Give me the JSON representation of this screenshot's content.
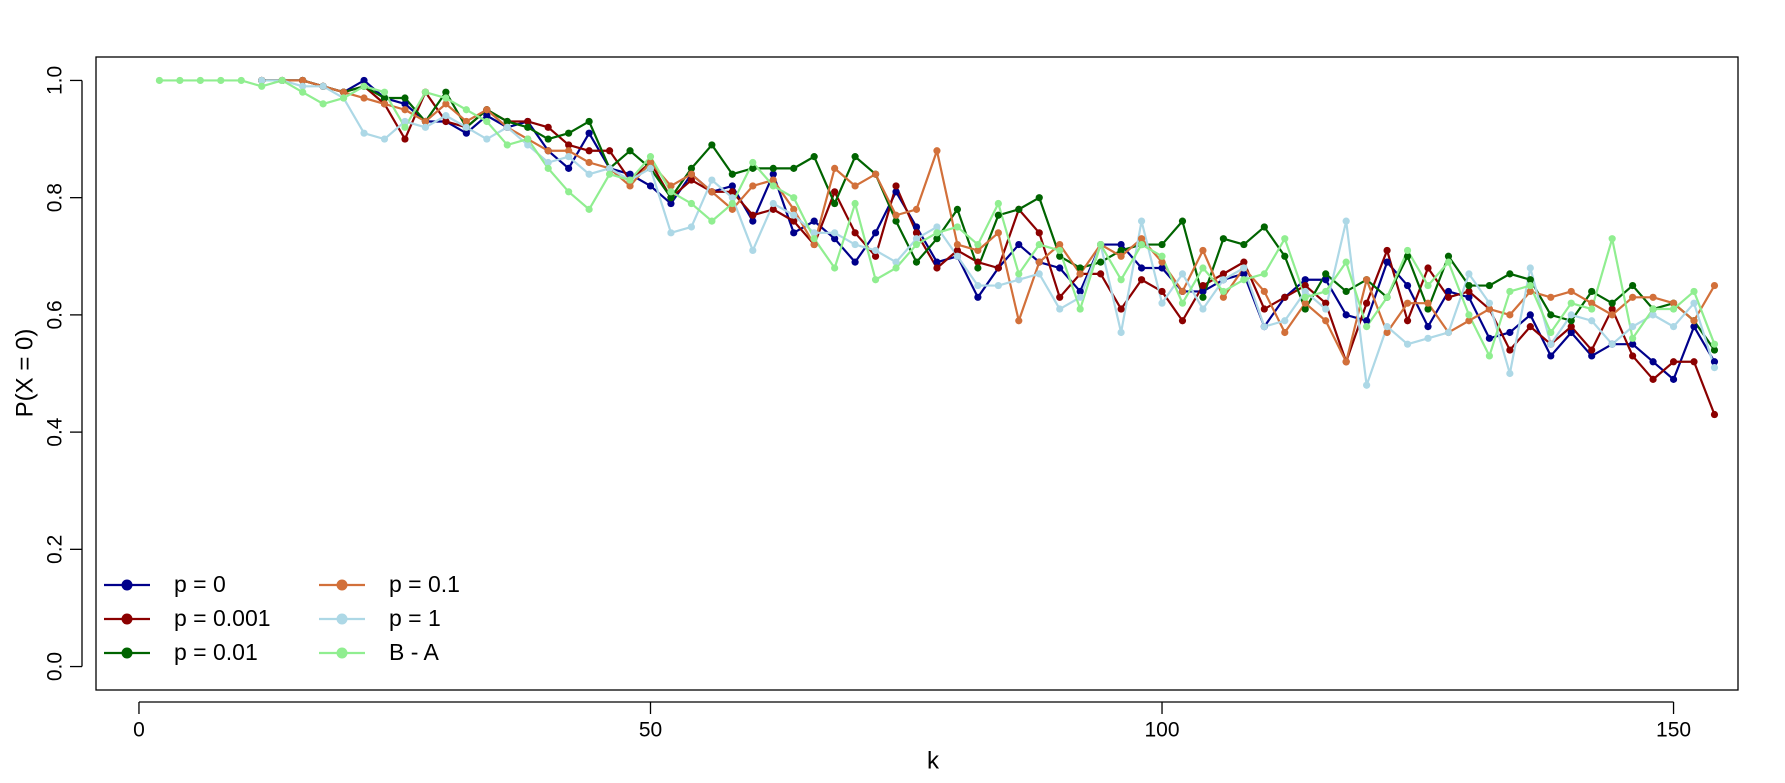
{
  "chart_data": {
    "type": "line",
    "xlabel": "k",
    "ylabel": "P(X = 0)",
    "xlim": [
      -4.2,
      156.3
    ],
    "ylim": [
      -0.04,
      1.04
    ],
    "xticks": [
      0,
      50,
      100,
      150
    ],
    "yticks": [
      {
        "value": 0,
        "label": "0.0"
      },
      {
        "value": 0.2,
        "label": "0.2"
      },
      {
        "value": 0.4,
        "label": "0.4"
      },
      {
        "value": 0.6,
        "label": "0.6"
      },
      {
        "value": 0.8,
        "label": "0.8"
      },
      {
        "value": 1,
        "label": "1.0"
      }
    ],
    "grid": false,
    "legend": "bottom-left",
    "x": [
      2,
      4,
      6,
      8,
      10,
      12,
      14,
      16,
      18,
      20,
      22,
      24,
      26,
      28,
      30,
      32,
      34,
      36,
      38,
      40,
      42,
      44,
      46,
      48,
      50,
      52,
      54,
      56,
      58,
      60,
      62,
      64,
      66,
      68,
      70,
      72,
      74,
      76,
      78,
      80,
      82,
      84,
      86,
      88,
      90,
      92,
      94,
      96,
      98,
      100,
      102,
      104,
      106,
      108,
      110,
      112,
      114,
      116,
      118,
      120,
      122,
      124,
      126,
      128,
      130,
      132,
      134,
      136,
      138,
      140,
      142,
      144,
      146,
      148,
      150,
      152,
      154
    ],
    "series": [
      {
        "name": "p = 0",
        "color": "#00008b",
        "values": [
          null,
          null,
          null,
          null,
          null,
          1.0,
          1.0,
          1.0,
          0.99,
          0.98,
          1.0,
          0.97,
          0.96,
          0.93,
          0.93,
          0.91,
          0.94,
          0.92,
          0.93,
          0.88,
          0.85,
          0.91,
          0.85,
          0.84,
          0.82,
          0.79,
          0.84,
          0.81,
          0.82,
          0.76,
          0.84,
          0.74,
          0.76,
          0.73,
          0.69,
          0.74,
          0.81,
          0.75,
          0.69,
          0.7,
          0.63,
          0.68,
          0.72,
          0.69,
          0.68,
          0.64,
          0.72,
          0.72,
          0.68,
          0.68,
          0.64,
          0.64,
          0.66,
          0.67,
          0.58,
          0.63,
          0.66,
          0.66,
          0.6,
          0.59,
          0.69,
          0.65,
          0.58,
          0.64,
          0.63,
          0.56,
          0.57,
          0.6,
          0.53,
          0.57,
          0.53,
          0.55,
          0.55,
          0.52,
          0.49,
          0.58,
          0.52
        ]
      },
      {
        "name": "p = 0.001",
        "color": "#8b0000",
        "values": [
          null,
          null,
          null,
          null,
          null,
          1.0,
          1.0,
          1.0,
          0.99,
          0.98,
          0.99,
          0.96,
          0.9,
          0.98,
          0.93,
          0.92,
          0.95,
          0.93,
          0.93,
          0.92,
          0.89,
          0.88,
          0.88,
          0.83,
          0.86,
          0.8,
          0.83,
          0.81,
          0.81,
          0.77,
          0.78,
          0.76,
          0.72,
          0.81,
          0.74,
          0.7,
          0.82,
          0.74,
          0.68,
          0.71,
          0.69,
          0.68,
          0.78,
          0.74,
          0.63,
          0.67,
          0.67,
          0.61,
          0.66,
          0.64,
          0.59,
          0.65,
          0.67,
          0.69,
          0.61,
          0.63,
          0.65,
          0.62,
          0.52,
          0.62,
          0.71,
          0.59,
          0.68,
          0.63,
          0.64,
          0.61,
          0.54,
          0.58,
          0.55,
          0.58,
          0.54,
          0.61,
          0.53,
          0.49,
          0.52,
          0.52,
          0.43
        ]
      },
      {
        "name": "p = 0.01",
        "color": "#006400",
        "values": [
          null,
          null,
          null,
          null,
          null,
          1.0,
          1.0,
          1.0,
          0.99,
          0.98,
          0.99,
          0.97,
          0.97,
          0.93,
          0.98,
          0.92,
          0.95,
          0.93,
          0.92,
          0.9,
          0.91,
          0.93,
          0.85,
          0.88,
          0.85,
          0.8,
          0.85,
          0.89,
          0.84,
          0.85,
          0.85,
          0.85,
          0.87,
          0.79,
          0.87,
          0.84,
          0.76,
          0.69,
          0.73,
          0.78,
          0.68,
          0.77,
          0.78,
          0.8,
          0.7,
          0.68,
          0.69,
          0.71,
          0.72,
          0.72,
          0.76,
          0.63,
          0.73,
          0.72,
          0.75,
          0.7,
          0.61,
          0.67,
          0.64,
          0.66,
          0.63,
          0.7,
          0.61,
          0.7,
          0.65,
          0.65,
          0.67,
          0.66,
          0.6,
          0.59,
          0.64,
          0.62,
          0.65,
          0.61,
          0.62,
          0.59,
          0.54
        ]
      },
      {
        "name": "p = 0.1",
        "color": "#d2703a",
        "values": [
          null,
          null,
          null,
          null,
          null,
          1.0,
          1.0,
          1.0,
          0.99,
          0.98,
          0.97,
          0.96,
          0.95,
          0.93,
          0.96,
          0.93,
          0.95,
          0.92,
          0.9,
          0.88,
          0.88,
          0.86,
          0.85,
          0.82,
          0.86,
          0.82,
          0.84,
          0.81,
          0.78,
          0.82,
          0.83,
          0.78,
          0.72,
          0.85,
          0.82,
          0.84,
          0.77,
          0.78,
          0.88,
          0.72,
          0.71,
          0.74,
          0.59,
          0.69,
          0.72,
          0.67,
          0.72,
          0.7,
          0.73,
          0.69,
          0.64,
          0.71,
          0.63,
          0.68,
          0.64,
          0.57,
          0.62,
          0.59,
          0.52,
          0.66,
          0.57,
          0.62,
          0.62,
          0.57,
          0.59,
          0.61,
          0.6,
          0.64,
          0.63,
          0.64,
          0.62,
          0.6,
          0.63,
          0.63,
          0.62,
          0.59,
          0.65
        ]
      },
      {
        "name": "p = 1",
        "color": "#add8e6",
        "values": [
          null,
          null,
          null,
          null,
          null,
          1.0,
          1.0,
          0.99,
          0.99,
          0.97,
          0.91,
          0.9,
          0.93,
          0.92,
          0.94,
          0.92,
          0.9,
          0.92,
          0.89,
          0.86,
          0.87,
          0.84,
          0.85,
          0.83,
          0.85,
          0.74,
          0.75,
          0.83,
          0.8,
          0.71,
          0.79,
          0.77,
          0.74,
          0.74,
          0.72,
          0.71,
          0.69,
          0.73,
          0.75,
          0.7,
          0.65,
          0.65,
          0.66,
          0.67,
          0.61,
          0.63,
          0.72,
          0.57,
          0.76,
          0.62,
          0.67,
          0.61,
          0.66,
          0.68,
          0.58,
          0.59,
          0.64,
          0.61,
          0.76,
          0.48,
          0.58,
          0.55,
          0.56,
          0.57,
          0.67,
          0.62,
          0.5,
          0.68,
          0.55,
          0.6,
          0.59,
          0.55,
          0.58,
          0.6,
          0.58,
          0.62,
          0.51
        ]
      },
      {
        "name": "B - A",
        "color": "#90ee90",
        "values": [
          1.0,
          1.0,
          1.0,
          1.0,
          1.0,
          0.99,
          1.0,
          0.98,
          0.96,
          0.97,
          0.99,
          0.98,
          0.92,
          0.98,
          0.97,
          0.95,
          0.93,
          0.89,
          0.9,
          0.85,
          0.81,
          0.78,
          0.84,
          0.83,
          0.87,
          0.81,
          0.79,
          0.76,
          0.79,
          0.86,
          0.82,
          0.8,
          0.73,
          0.68,
          0.79,
          0.66,
          0.68,
          0.72,
          0.74,
          0.75,
          0.72,
          0.79,
          0.67,
          0.72,
          0.71,
          0.61,
          0.72,
          0.66,
          0.72,
          0.7,
          0.62,
          0.68,
          0.64,
          0.66,
          0.67,
          0.73,
          0.63,
          0.64,
          0.69,
          0.58,
          0.63,
          0.71,
          0.65,
          0.69,
          0.6,
          0.53,
          0.64,
          0.65,
          0.57,
          0.62,
          0.61,
          0.73,
          0.56,
          0.61,
          0.61,
          0.64,
          0.55
        ]
      }
    ]
  }
}
